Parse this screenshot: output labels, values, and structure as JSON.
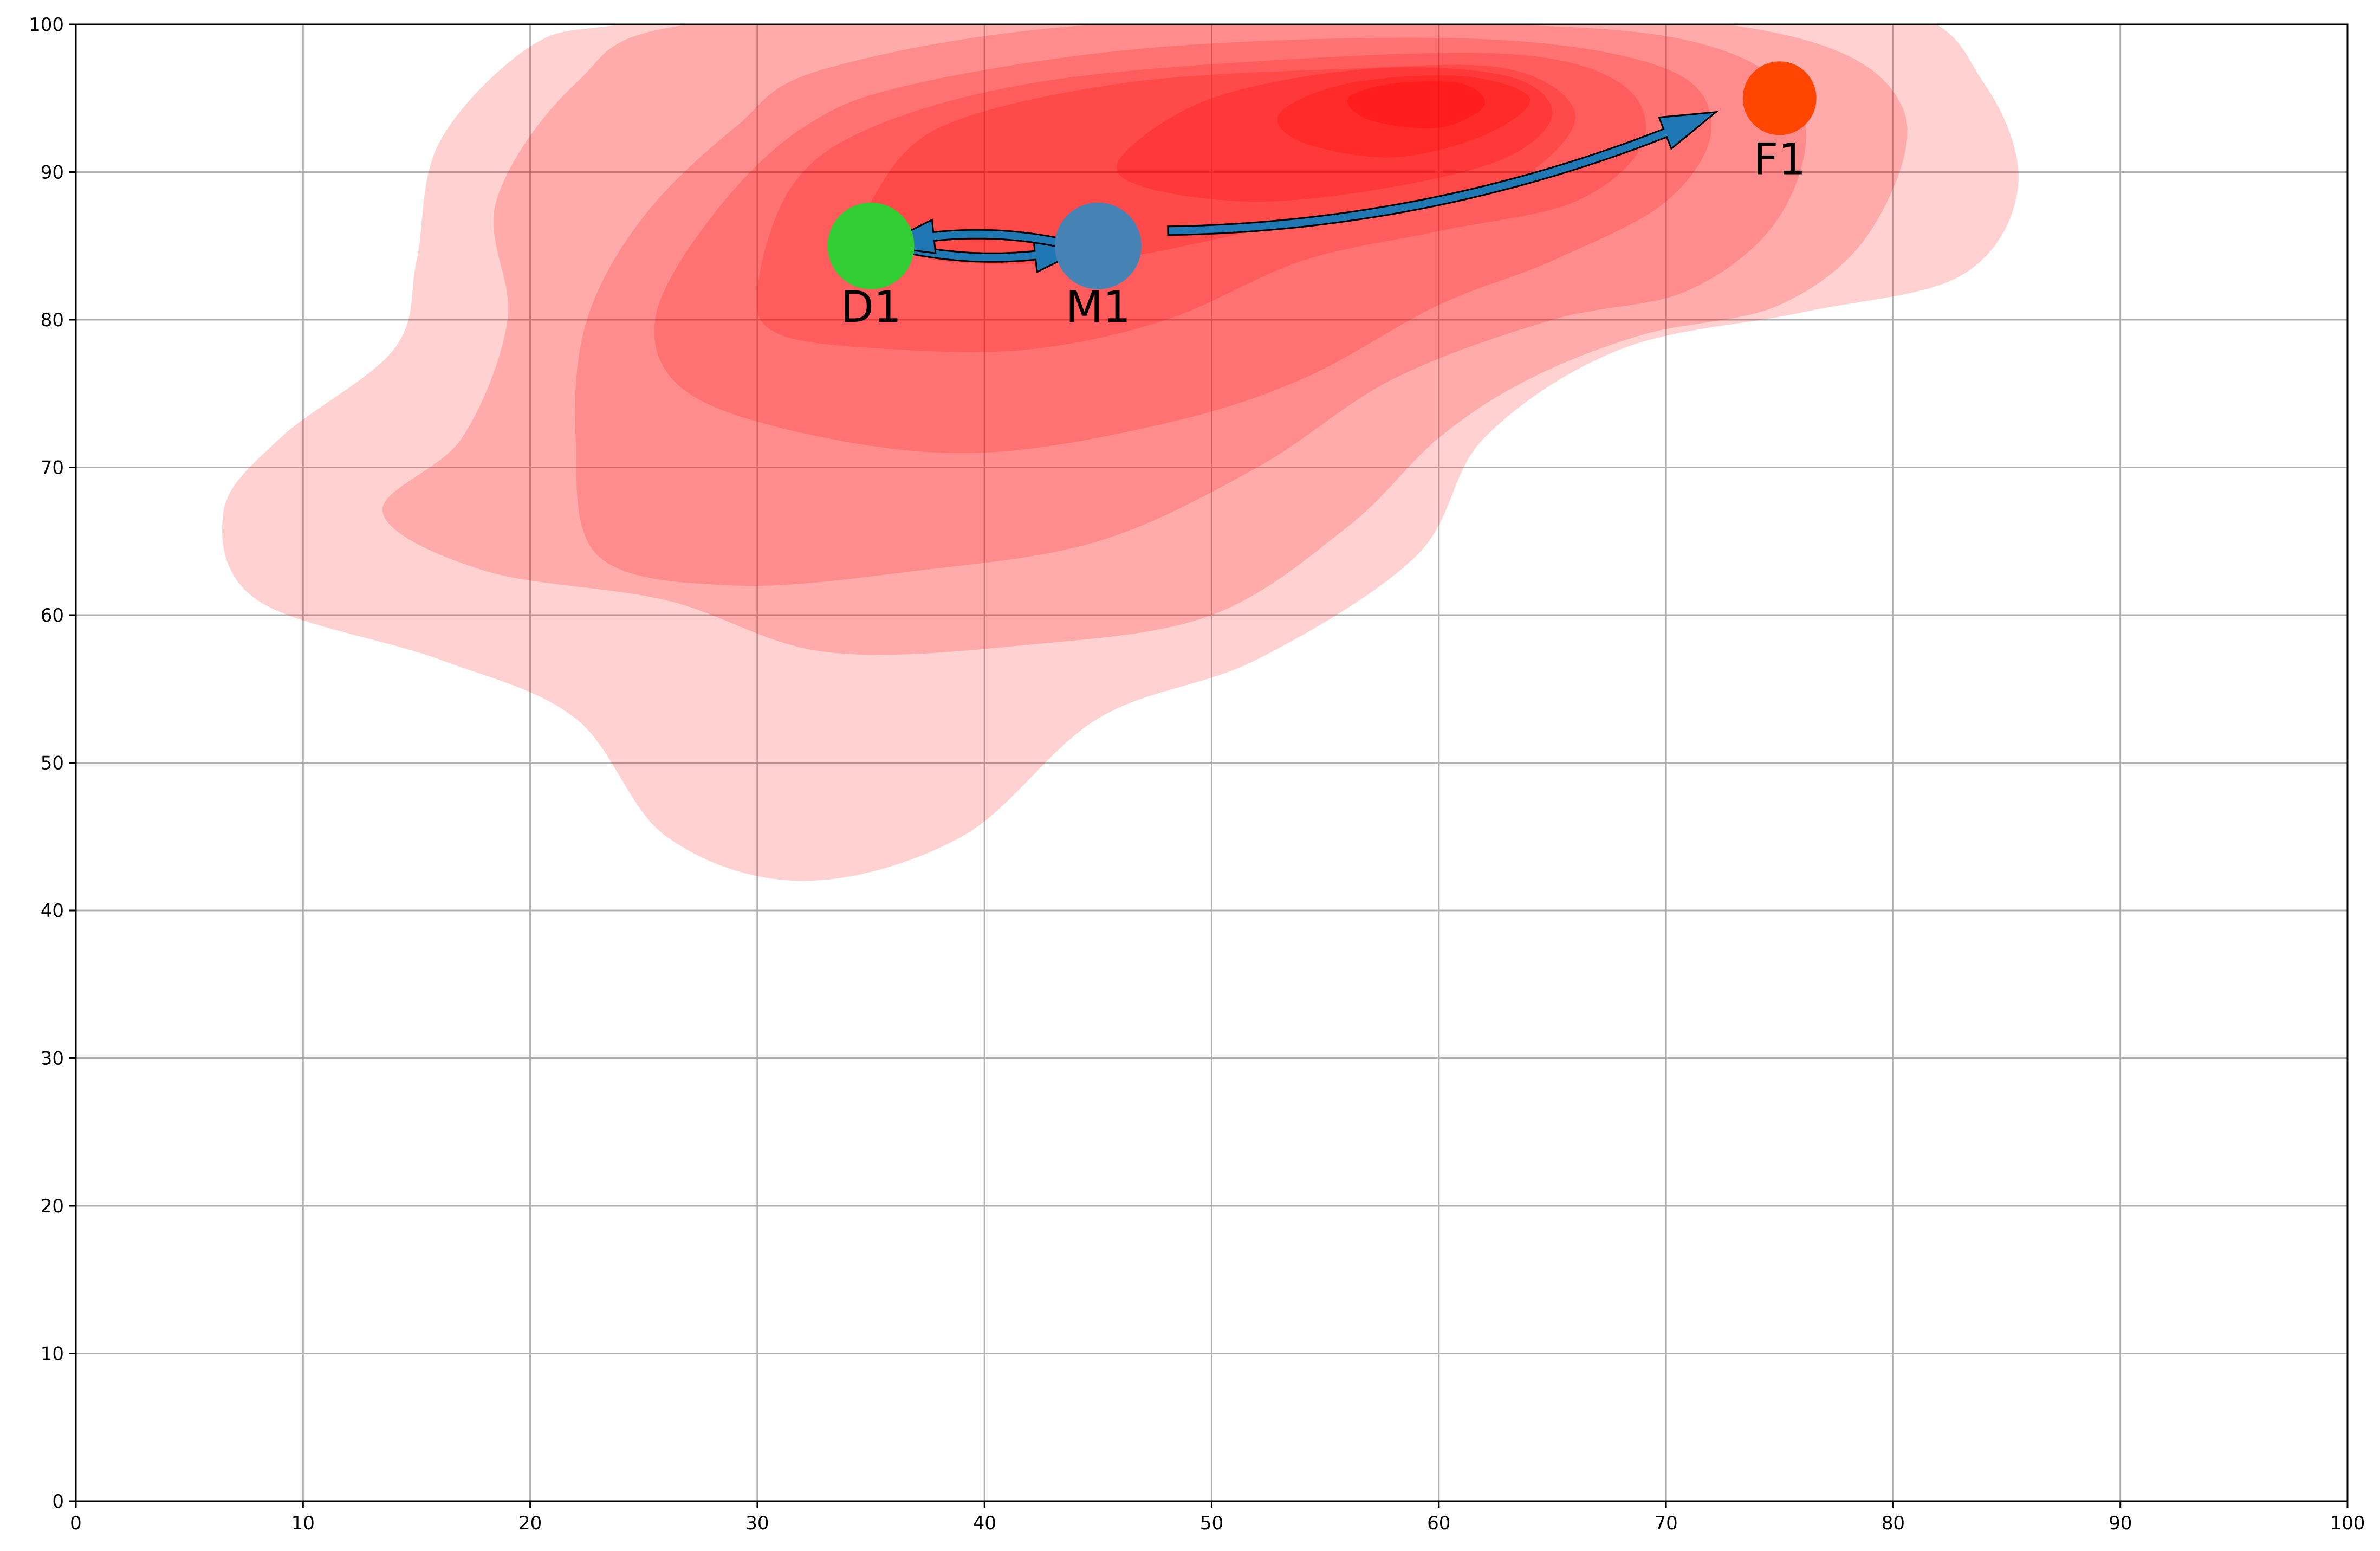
{
  "chart_data": {
    "type": "scatter",
    "title": "",
    "xlabel": "",
    "ylabel": "",
    "xlim": [
      0,
      100
    ],
    "ylim": [
      0,
      100
    ],
    "grid": true,
    "x_ticks": [
      0,
      10,
      20,
      30,
      40,
      50,
      60,
      70,
      80,
      90,
      100
    ],
    "y_ticks": [
      0,
      10,
      20,
      30,
      40,
      50,
      60,
      70,
      80,
      90,
      100
    ],
    "points": [
      {
        "label": "D1",
        "x": 35,
        "y": 85,
        "color": "#32cd32"
      },
      {
        "label": "M1",
        "x": 45,
        "y": 85,
        "color": "#4682b4"
      },
      {
        "label": "F1",
        "x": 75,
        "y": 95,
        "color": "#ff4500"
      }
    ],
    "arrows": [
      {
        "from": "D1",
        "to": "M1",
        "color": "#1f77b4"
      },
      {
        "from": "M1",
        "to": "D1",
        "color": "#1f77b4"
      },
      {
        "from": "M1",
        "to": "F1",
        "color": "#1f77b4"
      }
    ],
    "density": {
      "type": "kde-contour",
      "color": "#ff0000",
      "peak": {
        "x": 59,
        "y": 95
      }
    }
  }
}
